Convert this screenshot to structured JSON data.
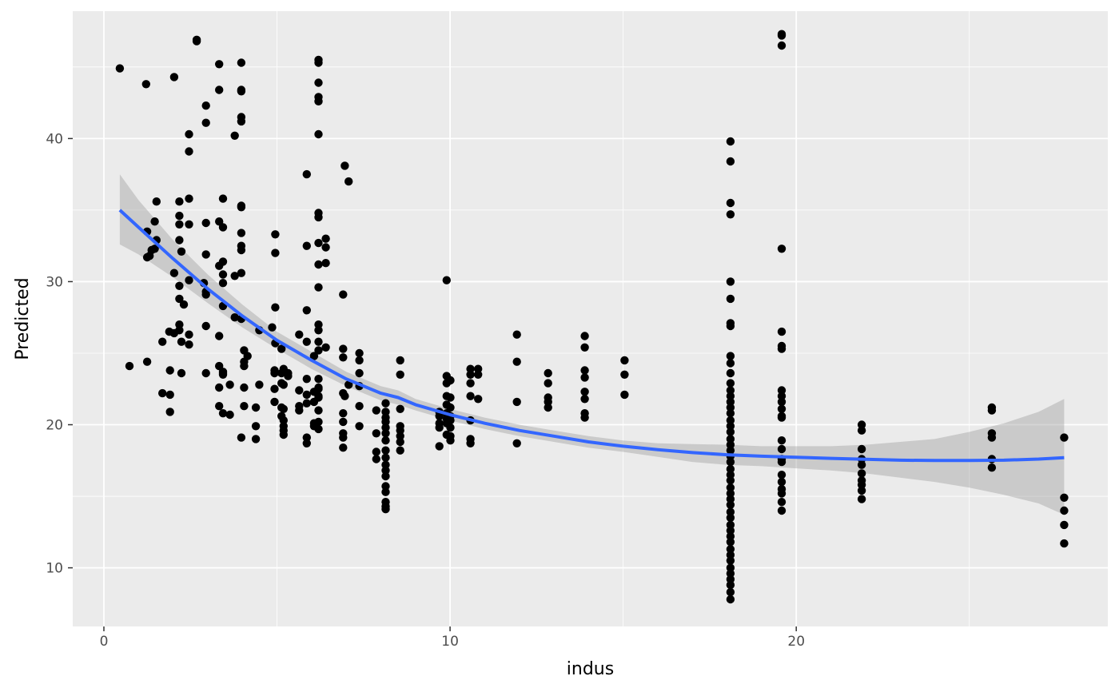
{
  "chart_data": {
    "type": "scatter",
    "title": "",
    "xlabel": "indus",
    "ylabel": "Predicted",
    "xlim": [
      -0.9,
      29.0
    ],
    "ylim": [
      5.9,
      48.9
    ],
    "x_ticks": [
      0,
      10,
      20
    ],
    "y_ticks": [
      10,
      20,
      30,
      40
    ],
    "grid": true,
    "legend": "none",
    "colors": {
      "panel": "#ebebeb",
      "grid": "#ffffff",
      "points": "#000000",
      "smooth_line": "#3366ff",
      "ribbon": "#999999"
    },
    "points": [
      [
        0.46,
        44.9
      ],
      [
        1.22,
        43.8
      ],
      [
        2.03,
        44.3
      ],
      [
        2.68,
        46.8
      ],
      [
        2.68,
        46.9
      ],
      [
        3.33,
        45.2
      ],
      [
        3.33,
        43.4
      ],
      [
        3.97,
        45.3
      ],
      [
        3.97,
        43.4
      ],
      [
        3.97,
        43.3
      ],
      [
        3.97,
        41.5
      ],
      [
        3.97,
        41.2
      ],
      [
        2.95,
        42.3
      ],
      [
        2.95,
        41.1
      ],
      [
        2.46,
        40.3
      ],
      [
        2.46,
        39.1
      ],
      [
        3.78,
        40.2
      ],
      [
        6.2,
        45.5
      ],
      [
        6.2,
        45.3
      ],
      [
        6.2,
        43.9
      ],
      [
        6.2,
        42.9
      ],
      [
        6.2,
        42.6
      ],
      [
        6.2,
        40.3
      ],
      [
        6.96,
        38.1
      ],
      [
        7.07,
        37.0
      ],
      [
        5.86,
        37.5
      ],
      [
        1.52,
        35.6
      ],
      [
        2.18,
        35.6
      ],
      [
        2.46,
        35.8
      ],
      [
        3.44,
        35.8
      ],
      [
        3.97,
        35.3
      ],
      [
        3.97,
        35.2
      ],
      [
        6.2,
        34.8
      ],
      [
        6.2,
        34.5
      ],
      [
        2.18,
        34.6
      ],
      [
        1.47,
        34.2
      ],
      [
        2.18,
        34.0
      ],
      [
        2.46,
        34.0
      ],
      [
        2.95,
        34.1
      ],
      [
        3.33,
        34.2
      ],
      [
        3.44,
        33.8
      ],
      [
        3.97,
        33.4
      ],
      [
        4.95,
        33.3
      ],
      [
        1.25,
        33.5
      ],
      [
        1.52,
        32.9
      ],
      [
        2.18,
        32.9
      ],
      [
        1.47,
        32.3
      ],
      [
        1.38,
        32.2
      ],
      [
        1.32,
        31.8
      ],
      [
        1.25,
        31.7
      ],
      [
        2.24,
        32.1
      ],
      [
        3.97,
        32.5
      ],
      [
        3.97,
        32.2
      ],
      [
        4.95,
        32.0
      ],
      [
        2.95,
        31.9
      ],
      [
        5.86,
        32.5
      ],
      [
        6.2,
        32.7
      ],
      [
        6.41,
        33.0
      ],
      [
        6.41,
        32.4
      ],
      [
        3.44,
        31.4
      ],
      [
        3.33,
        31.1
      ],
      [
        6.2,
        31.2
      ],
      [
        6.41,
        31.3
      ],
      [
        2.03,
        30.6
      ],
      [
        3.44,
        30.5
      ],
      [
        3.78,
        30.4
      ],
      [
        3.97,
        30.6
      ],
      [
        2.46,
        30.1
      ],
      [
        3.44,
        29.9
      ],
      [
        2.18,
        29.7
      ],
      [
        2.89,
        29.9
      ],
      [
        2.95,
        29.3
      ],
      [
        2.95,
        29.1
      ],
      [
        6.2,
        29.6
      ],
      [
        6.91,
        29.1
      ],
      [
        2.18,
        28.8
      ],
      [
        2.31,
        28.4
      ],
      [
        3.44,
        28.3
      ],
      [
        4.95,
        28.2
      ],
      [
        5.86,
        28.0
      ],
      [
        3.78,
        27.5
      ],
      [
        3.97,
        27.4
      ],
      [
        2.18,
        27.0
      ],
      [
        2.95,
        26.9
      ],
      [
        2.18,
        26.6
      ],
      [
        2.03,
        26.4
      ],
      [
        1.89,
        26.5
      ],
      [
        2.46,
        26.3
      ],
      [
        3.33,
        26.2
      ],
      [
        4.49,
        26.6
      ],
      [
        4.86,
        26.8
      ],
      [
        5.64,
        26.3
      ],
      [
        6.2,
        27.0
      ],
      [
        6.2,
        26.6
      ],
      [
        1.69,
        25.8
      ],
      [
        2.24,
        25.8
      ],
      [
        2.46,
        25.6
      ],
      [
        4.05,
        25.2
      ],
      [
        4.95,
        25.7
      ],
      [
        5.13,
        25.3
      ],
      [
        5.86,
        25.8
      ],
      [
        6.07,
        24.8
      ],
      [
        6.2,
        25.8
      ],
      [
        6.2,
        25.2
      ],
      [
        6.41,
        25.4
      ],
      [
        7.38,
        25.0
      ],
      [
        7.38,
        24.5
      ],
      [
        6.91,
        25.3
      ],
      [
        0.74,
        24.1
      ],
      [
        1.25,
        24.4
      ],
      [
        1.91,
        23.8
      ],
      [
        2.24,
        23.6
      ],
      [
        2.95,
        23.6
      ],
      [
        3.33,
        24.1
      ],
      [
        3.44,
        23.7
      ],
      [
        3.44,
        23.5
      ],
      [
        4.05,
        24.1
      ],
      [
        4.05,
        24.4
      ],
      [
        4.15,
        24.8
      ],
      [
        4.93,
        23.8
      ],
      [
        4.93,
        23.6
      ],
      [
        5.13,
        23.6
      ],
      [
        5.19,
        23.9
      ],
      [
        5.32,
        23.6
      ],
      [
        5.32,
        23.4
      ],
      [
        5.86,
        23.2
      ],
      [
        6.2,
        23.2
      ],
      [
        6.2,
        22.5
      ],
      [
        6.91,
        24.7
      ],
      [
        7.38,
        23.6
      ],
      [
        7.38,
        22.7
      ],
      [
        1.69,
        22.2
      ],
      [
        1.91,
        22.1
      ],
      [
        3.33,
        22.6
      ],
      [
        3.44,
        23.6
      ],
      [
        3.64,
        22.8
      ],
      [
        4.05,
        22.6
      ],
      [
        4.49,
        22.8
      ],
      [
        4.93,
        22.5
      ],
      [
        5.13,
        22.9
      ],
      [
        5.19,
        22.8
      ],
      [
        5.64,
        22.4
      ],
      [
        5.86,
        22.1
      ],
      [
        6.2,
        22.6
      ],
      [
        6.2,
        22.0
      ],
      [
        6.07,
        22.3
      ],
      [
        6.91,
        22.2
      ],
      [
        6.96,
        22.0
      ],
      [
        7.07,
        22.8
      ],
      [
        1.91,
        20.9
      ],
      [
        3.33,
        21.3
      ],
      [
        3.44,
        20.8
      ],
      [
        3.64,
        20.7
      ],
      [
        4.05,
        21.3
      ],
      [
        4.39,
        21.2
      ],
      [
        4.93,
        21.6
      ],
      [
        5.13,
        21.2
      ],
      [
        5.19,
        21.1
      ],
      [
        5.64,
        21.3
      ],
      [
        5.64,
        21.0
      ],
      [
        5.86,
        21.5
      ],
      [
        6.07,
        21.6
      ],
      [
        6.2,
        21.9
      ],
      [
        6.2,
        21.0
      ],
      [
        6.91,
        20.8
      ],
      [
        7.38,
        21.3
      ],
      [
        8.14,
        21.5
      ],
      [
        8.14,
        20.9
      ],
      [
        8.14,
        20.5
      ],
      [
        8.56,
        21.1
      ],
      [
        3.97,
        19.1
      ],
      [
        4.39,
        19.0
      ],
      [
        4.39,
        19.9
      ],
      [
        5.13,
        20.6
      ],
      [
        5.19,
        19.6
      ],
      [
        5.19,
        19.3
      ],
      [
        5.19,
        19.9
      ],
      [
        5.19,
        20.3
      ],
      [
        6.07,
        20.1
      ],
      [
        6.07,
        19.9
      ],
      [
        6.2,
        20.2
      ],
      [
        6.2,
        19.7
      ],
      [
        5.86,
        19.1
      ],
      [
        5.86,
        18.7
      ],
      [
        6.91,
        20.2
      ],
      [
        6.91,
        19.4
      ],
      [
        6.91,
        19.1
      ],
      [
        6.91,
        18.4
      ],
      [
        7.38,
        19.9
      ],
      [
        7.87,
        19.4
      ],
      [
        7.87,
        21.0
      ],
      [
        7.87,
        18.1
      ],
      [
        7.87,
        17.6
      ],
      [
        8.14,
        20.2
      ],
      [
        8.14,
        19.8
      ],
      [
        8.14,
        19.4
      ],
      [
        8.14,
        18.9
      ],
      [
        8.14,
        18.2
      ],
      [
        8.14,
        17.7
      ],
      [
        8.14,
        17.2
      ],
      [
        8.14,
        16.8
      ],
      [
        8.14,
        16.4
      ],
      [
        8.14,
        15.7
      ],
      [
        8.14,
        15.3
      ],
      [
        8.14,
        14.6
      ],
      [
        8.14,
        14.3
      ],
      [
        8.14,
        14.1
      ],
      [
        8.56,
        19.9
      ],
      [
        8.56,
        19.6
      ],
      [
        8.56,
        19.2
      ],
      [
        8.56,
        18.8
      ],
      [
        8.56,
        18.2
      ],
      [
        8.56,
        24.5
      ],
      [
        8.56,
        23.5
      ],
      [
        9.69,
        20.9
      ],
      [
        9.69,
        20.6
      ],
      [
        9.69,
        20.1
      ],
      [
        9.69,
        19.8
      ],
      [
        9.69,
        18.5
      ],
      [
        9.9,
        30.1
      ],
      [
        9.9,
        23.4
      ],
      [
        9.9,
        22.9
      ],
      [
        9.9,
        22.0
      ],
      [
        9.9,
        21.4
      ],
      [
        9.9,
        20.8
      ],
      [
        9.9,
        20.4
      ],
      [
        9.9,
        20.1
      ],
      [
        9.9,
        19.3
      ],
      [
        10.01,
        23.1
      ],
      [
        10.01,
        21.9
      ],
      [
        10.01,
        21.2
      ],
      [
        10.01,
        20.6
      ],
      [
        10.01,
        20.3
      ],
      [
        10.01,
        19.8
      ],
      [
        10.01,
        19.2
      ],
      [
        10.01,
        18.9
      ],
      [
        10.59,
        23.9
      ],
      [
        10.59,
        23.5
      ],
      [
        10.59,
        22.9
      ],
      [
        10.59,
        22.0
      ],
      [
        10.59,
        20.3
      ],
      [
        10.59,
        19.0
      ],
      [
        10.59,
        18.7
      ],
      [
        10.81,
        23.9
      ],
      [
        10.81,
        23.5
      ],
      [
        10.81,
        21.8
      ],
      [
        11.93,
        26.3
      ],
      [
        11.93,
        24.4
      ],
      [
        11.93,
        21.6
      ],
      [
        11.93,
        18.7
      ],
      [
        12.83,
        23.6
      ],
      [
        12.83,
        22.9
      ],
      [
        12.83,
        21.9
      ],
      [
        12.83,
        21.6
      ],
      [
        12.83,
        21.2
      ],
      [
        13.89,
        26.2
      ],
      [
        13.89,
        25.4
      ],
      [
        13.89,
        23.8
      ],
      [
        13.89,
        23.3
      ],
      [
        13.89,
        22.3
      ],
      [
        13.89,
        21.8
      ],
      [
        13.89,
        20.8
      ],
      [
        13.89,
        20.5
      ],
      [
        15.04,
        24.5
      ],
      [
        15.04,
        23.5
      ],
      [
        15.04,
        22.1
      ],
      [
        18.1,
        39.8
      ],
      [
        18.1,
        38.4
      ],
      [
        18.1,
        35.5
      ],
      [
        18.1,
        34.7
      ],
      [
        18.1,
        30.0
      ],
      [
        18.1,
        28.8
      ],
      [
        18.1,
        27.1
      ],
      [
        18.1,
        26.9
      ],
      [
        18.1,
        24.8
      ],
      [
        18.1,
        24.3
      ],
      [
        18.1,
        23.6
      ],
      [
        18.1,
        22.9
      ],
      [
        18.1,
        22.4
      ],
      [
        18.1,
        22.0
      ],
      [
        18.1,
        21.6
      ],
      [
        18.1,
        21.2
      ],
      [
        18.1,
        20.8
      ],
      [
        18.1,
        20.3
      ],
      [
        18.1,
        19.9
      ],
      [
        18.1,
        19.5
      ],
      [
        18.1,
        19.0
      ],
      [
        18.1,
        18.6
      ],
      [
        18.1,
        18.2
      ],
      [
        18.1,
        17.8
      ],
      [
        18.1,
        17.4
      ],
      [
        18.1,
        16.9
      ],
      [
        18.1,
        16.5
      ],
      [
        18.1,
        16.1
      ],
      [
        18.1,
        15.6
      ],
      [
        18.1,
        15.2
      ],
      [
        18.1,
        14.8
      ],
      [
        18.1,
        14.4
      ],
      [
        18.1,
        13.9
      ],
      [
        18.1,
        13.5
      ],
      [
        18.1,
        13.0
      ],
      [
        18.1,
        12.6
      ],
      [
        18.1,
        12.2
      ],
      [
        18.1,
        11.8
      ],
      [
        18.1,
        11.3
      ],
      [
        18.1,
        10.9
      ],
      [
        18.1,
        10.5
      ],
      [
        18.1,
        10.0
      ],
      [
        18.1,
        9.6
      ],
      [
        18.1,
        9.2
      ],
      [
        18.1,
        8.8
      ],
      [
        18.1,
        8.3
      ],
      [
        18.1,
        7.8
      ],
      [
        19.58,
        47.3
      ],
      [
        19.58,
        47.2
      ],
      [
        19.58,
        46.5
      ],
      [
        19.58,
        32.3
      ],
      [
        19.58,
        26.5
      ],
      [
        19.58,
        25.5
      ],
      [
        19.58,
        25.3
      ],
      [
        19.58,
        22.4
      ],
      [
        19.58,
        22.0
      ],
      [
        19.58,
        21.6
      ],
      [
        19.58,
        21.1
      ],
      [
        19.58,
        20.6
      ],
      [
        19.58,
        20.5
      ],
      [
        19.58,
        18.9
      ],
      [
        19.58,
        18.3
      ],
      [
        19.58,
        17.6
      ],
      [
        19.58,
        17.4
      ],
      [
        19.58,
        16.5
      ],
      [
        19.58,
        16.0
      ],
      [
        19.58,
        15.5
      ],
      [
        19.58,
        15.2
      ],
      [
        19.58,
        14.6
      ],
      [
        19.58,
        14.0
      ],
      [
        21.89,
        20.0
      ],
      [
        21.89,
        19.6
      ],
      [
        21.89,
        18.3
      ],
      [
        21.89,
        17.6
      ],
      [
        21.89,
        17.2
      ],
      [
        21.89,
        16.6
      ],
      [
        21.89,
        16.1
      ],
      [
        21.89,
        15.8
      ],
      [
        21.89,
        15.4
      ],
      [
        21.89,
        14.8
      ],
      [
        25.65,
        21.2
      ],
      [
        25.65,
        21.0
      ],
      [
        25.65,
        19.4
      ],
      [
        25.65,
        19.1
      ],
      [
        25.65,
        17.6
      ],
      [
        25.65,
        17.0
      ],
      [
        27.74,
        19.1
      ],
      [
        27.74,
        14.9
      ],
      [
        27.74,
        14.0
      ],
      [
        27.74,
        13.0
      ],
      [
        27.74,
        11.7
      ]
    ],
    "smooth": {
      "x": [
        0.46,
        1,
        2,
        3,
        4,
        5,
        6,
        7,
        8,
        8.5,
        9,
        10,
        11,
        12,
        13,
        14,
        15,
        16,
        17,
        18,
        19,
        20,
        21,
        22,
        23,
        24,
        25,
        26,
        27,
        27.74
      ],
      "y": [
        35.0,
        33.8,
        31.6,
        29.5,
        27.6,
        25.9,
        24.5,
        23.2,
        22.2,
        21.9,
        21.4,
        20.7,
        20.1,
        19.6,
        19.2,
        18.8,
        18.5,
        18.25,
        18.05,
        17.9,
        17.8,
        17.72,
        17.65,
        17.58,
        17.52,
        17.5,
        17.5,
        17.52,
        17.6,
        17.7
      ],
      "lower": [
        32.6,
        31.9,
        30.3,
        28.5,
        26.8,
        25.3,
        23.9,
        22.7,
        21.7,
        21.4,
        21.0,
        20.3,
        19.7,
        19.2,
        18.8,
        18.4,
        18.1,
        17.75,
        17.4,
        17.2,
        17.1,
        16.95,
        16.8,
        16.6,
        16.3,
        16.0,
        15.6,
        15.1,
        14.5,
        13.7
      ],
      "upper": [
        37.5,
        35.7,
        32.9,
        30.5,
        28.4,
        26.5,
        25.1,
        23.7,
        22.7,
        22.4,
        21.8,
        21.1,
        20.5,
        20.0,
        19.6,
        19.2,
        18.9,
        18.7,
        18.65,
        18.6,
        18.5,
        18.5,
        18.5,
        18.6,
        18.8,
        19.0,
        19.5,
        20.1,
        20.9,
        21.8
      ]
    }
  }
}
